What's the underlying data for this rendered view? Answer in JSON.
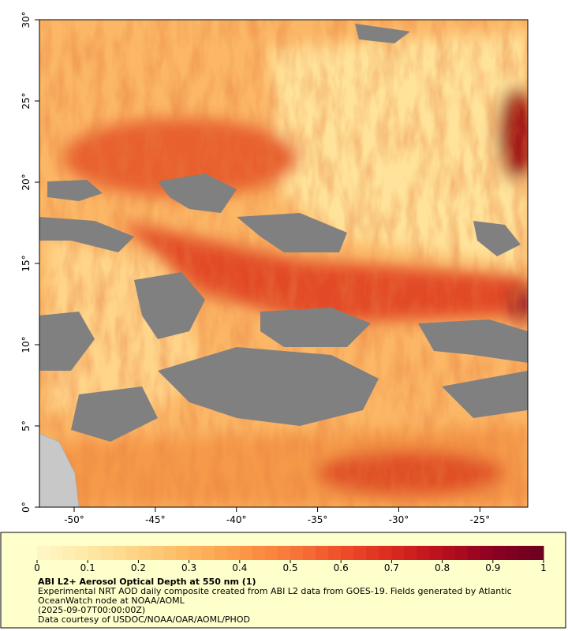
{
  "map": {
    "xlim": [
      -52.14,
      -22.05
    ],
    "ylim": [
      0,
      30
    ],
    "xticks": [
      {
        "value": -50,
        "label": "-50°"
      },
      {
        "value": -45,
        "label": "-45°"
      },
      {
        "value": -40,
        "label": "-40°"
      },
      {
        "value": -35,
        "label": "-35°"
      },
      {
        "value": -30,
        "label": "-30°"
      },
      {
        "value": -25,
        "label": "-25°"
      }
    ],
    "yticks": [
      {
        "value": 0,
        "label": "0°"
      },
      {
        "value": 5,
        "label": "5°"
      },
      {
        "value": 10,
        "label": "10°"
      },
      {
        "value": 15,
        "label": "15°"
      },
      {
        "value": 20,
        "label": "20°"
      },
      {
        "value": 25,
        "label": "25°"
      },
      {
        "value": 30,
        "label": "30°"
      }
    ],
    "colorbar": {
      "range": [
        0,
        1
      ],
      "ticks": [
        0,
        0.1,
        0.2,
        0.3,
        0.4,
        0.5,
        0.6,
        0.7,
        0.8,
        0.9,
        1
      ],
      "colors": [
        "#fff7c8",
        "#ffe9a4",
        "#fed283",
        "#fdb860",
        "#fc9a48",
        "#f8783a",
        "#ef4f2a",
        "#d92a20",
        "#b8101e",
        "#8c0022",
        "#6b0020"
      ]
    },
    "title": "ABI L2+ Aerosol Optical Depth at 550 nm (1)",
    "description": "Experimental NRT AOD daily composite created from ABI L2 data from GOES-19. Fields generated by Atlantic OceanWatch node at NOAA/AOML",
    "time": "(2025-09-07T00:00:00Z)",
    "credit": "Data courtesy of USDOC/NOAA/OAR/AOML/PHOD"
  }
}
